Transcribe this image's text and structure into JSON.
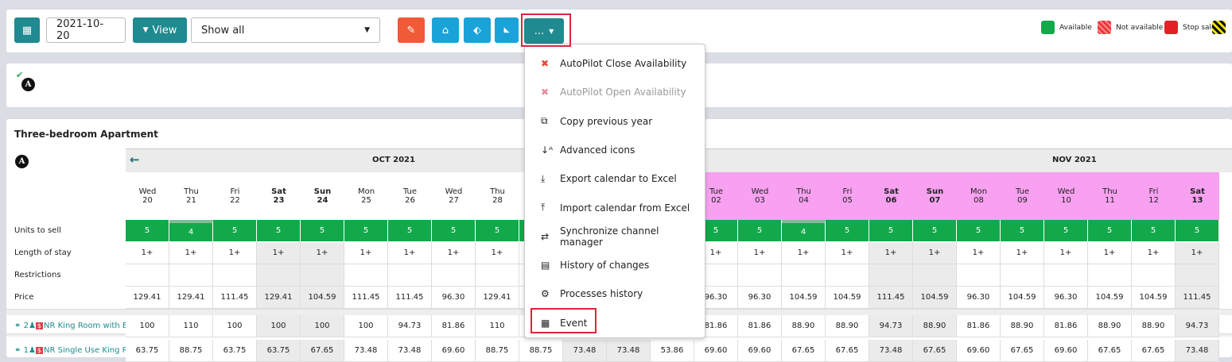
{
  "toolbar": {
    "date": "2021-10-20",
    "view_label": "View",
    "filter": "Show all",
    "more_label": "..."
  },
  "legend": [
    {
      "label": "Available",
      "color": "#12a94a"
    },
    {
      "label": "Not available",
      "color": "#e8363a"
    },
    {
      "label": "Stop sale",
      "color": "#e32026"
    }
  ],
  "second_panel": {
    "avatar": "A"
  },
  "table": {
    "title": "Three-bedroom Apartment",
    "avatar": "A",
    "months": [
      "OCT 2021",
      "NOV 2021"
    ],
    "row_labels": [
      "Units to sell",
      "Length of stay",
      "Restrictions",
      "Price"
    ],
    "rate_rows": [
      {
        "guests": "2",
        "name": "NR King Room with E"
      },
      {
        "guests": "1",
        "name": "NR Single Use King R"
      }
    ],
    "columns": [
      {
        "day": "Wed",
        "date": "20",
        "we": false,
        "u": "5",
        "los": "1+",
        "p": "129.41",
        "r1": "100",
        "r2": "63.75"
      },
      {
        "day": "Thu",
        "date": "21",
        "we": false,
        "u": "4",
        "los": "1+",
        "p": "129.41",
        "r1": "110",
        "r2": "88.75"
      },
      {
        "day": "Fri",
        "date": "22",
        "we": false,
        "u": "5",
        "los": "1+",
        "p": "111.45",
        "r1": "100",
        "r2": "63.75"
      },
      {
        "day": "Sat",
        "date": "23",
        "we": true,
        "u": "5",
        "los": "1+",
        "p": "129.41",
        "r1": "100",
        "r2": "63.75"
      },
      {
        "day": "Sun",
        "date": "24",
        "we": true,
        "u": "5",
        "los": "1+",
        "p": "104.59",
        "r1": "100",
        "r2": "67.65"
      },
      {
        "day": "Mon",
        "date": "25",
        "we": false,
        "u": "5",
        "los": "1+",
        "p": "111.45",
        "r1": "100",
        "r2": "73.48"
      },
      {
        "day": "Tue",
        "date": "26",
        "we": false,
        "u": "5",
        "los": "1+",
        "p": "111.45",
        "r1": "94.73",
        "r2": "73.48"
      },
      {
        "day": "Wed",
        "date": "27",
        "we": false,
        "u": "5",
        "los": "1+",
        "p": "96.30",
        "r1": "81.86",
        "r2": "69.60"
      },
      {
        "day": "Thu",
        "date": "28",
        "we": false,
        "u": "5",
        "los": "1+",
        "p": "129.41",
        "r1": "110",
        "r2": "88.75"
      },
      {
        "day": "",
        "date": "",
        "we": false,
        "u": "",
        "los": "",
        "p": "",
        "r1": "",
        "r2": "88.75"
      },
      {
        "day": "",
        "date": "",
        "we": true,
        "u": "",
        "los": "",
        "p": "",
        "r1": "",
        "r2": "73.48"
      },
      {
        "day": "",
        "date": "",
        "we": true,
        "u": "",
        "los": "",
        "p": "",
        "r1": "",
        "r2": "73.48"
      },
      {
        "day": "",
        "date": "",
        "we": false,
        "u": "",
        "los": "",
        "p": "",
        "r1": "",
        "r2": "53.86",
        "nov": true
      },
      {
        "day": "Tue",
        "date": "02",
        "we": false,
        "u": "5",
        "los": "1+",
        "p": "96.30",
        "r1": "81.86",
        "r2": "69.60",
        "nov": true
      },
      {
        "day": "Wed",
        "date": "03",
        "we": false,
        "u": "5",
        "los": "1+",
        "p": "96.30",
        "r1": "81.86",
        "r2": "69.60",
        "nov": true
      },
      {
        "day": "Thu",
        "date": "04",
        "we": false,
        "u": "4",
        "los": "1+",
        "p": "104.59",
        "r1": "88.90",
        "r2": "67.65",
        "nov": true
      },
      {
        "day": "Fri",
        "date": "05",
        "we": false,
        "u": "5",
        "los": "1+",
        "p": "104.59",
        "r1": "88.90",
        "r2": "67.65",
        "nov": true
      },
      {
        "day": "Sat",
        "date": "06",
        "we": true,
        "u": "5",
        "los": "1+",
        "p": "111.45",
        "r1": "94.73",
        "r2": "73.48",
        "nov": true
      },
      {
        "day": "Sun",
        "date": "07",
        "we": true,
        "u": "5",
        "los": "1+",
        "p": "104.59",
        "r1": "88.90",
        "r2": "67.65",
        "nov": true
      },
      {
        "day": "Mon",
        "date": "08",
        "we": false,
        "u": "5",
        "los": "1+",
        "p": "96.30",
        "r1": "81.86",
        "r2": "69.60",
        "nov": true
      },
      {
        "day": "Tue",
        "date": "09",
        "we": false,
        "u": "5",
        "los": "1+",
        "p": "104.59",
        "r1": "88.90",
        "r2": "67.65",
        "nov": true
      },
      {
        "day": "Wed",
        "date": "10",
        "we": false,
        "u": "5",
        "los": "1+",
        "p": "96.30",
        "r1": "81.86",
        "r2": "69.60",
        "nov": true
      },
      {
        "day": "Thu",
        "date": "11",
        "we": false,
        "u": "5",
        "los": "1+",
        "p": "104.59",
        "r1": "88.90",
        "r2": "67.65",
        "nov": true
      },
      {
        "day": "Fri",
        "date": "12",
        "we": false,
        "u": "5",
        "los": "1+",
        "p": "104.59",
        "r1": "88.90",
        "r2": "67.65",
        "nov": true
      },
      {
        "day": "Sat",
        "date": "13",
        "we": true,
        "u": "5",
        "los": "1+",
        "p": "111.45",
        "r1": "94.73",
        "r2": "73.48",
        "nov": true
      }
    ]
  },
  "menu": [
    {
      "label": "AutoPilot Close Availability",
      "icon": "close-icon"
    },
    {
      "label": "AutoPilot Open Availability",
      "icon": "close-icon"
    },
    {
      "label": "Copy previous year",
      "icon": "copy-icon"
    },
    {
      "label": "Advanced icons",
      "icon": "sort-alpha-icon"
    },
    {
      "label": "Export calendar to Excel",
      "icon": "download-icon"
    },
    {
      "label": "Import calendar from Excel",
      "icon": "upload-icon"
    },
    {
      "label": "Synchronize channel manager",
      "icon": "exchange-icon"
    },
    {
      "label": "History of changes",
      "icon": "archive-icon"
    },
    {
      "label": "Processes history",
      "icon": "cogs-icon"
    },
    {
      "label": "Event",
      "icon": "calendar-icon"
    }
  ],
  "colors": {
    "teal": "#1f8a8f",
    "green": "#12a94a",
    "pink": "#f7a1f0",
    "highlight": "#d9263a"
  }
}
